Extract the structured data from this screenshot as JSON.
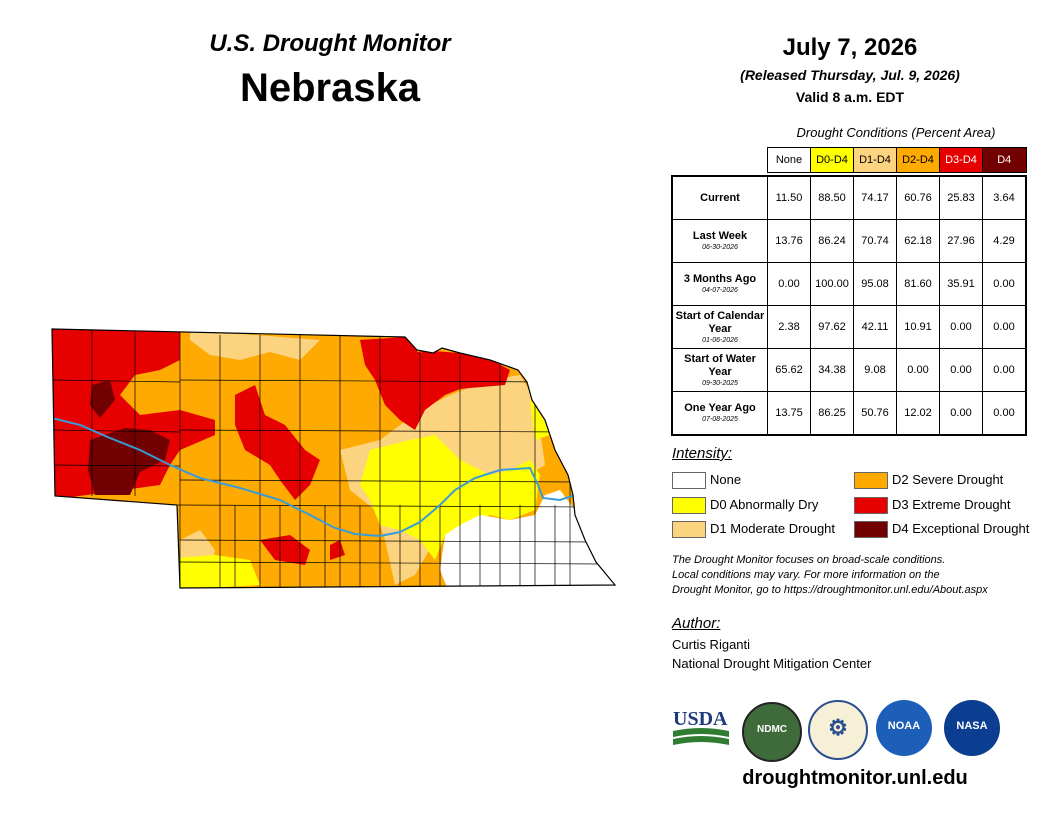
{
  "header": {
    "title": "U.S. Drought Monitor",
    "state": "Nebraska",
    "date": "July 7, 2026",
    "released": "(Released Thursday, Jul. 9, 2026)",
    "valid": "Valid 8 a.m. EDT"
  },
  "table": {
    "title": "Drought Conditions (Percent Area)",
    "columns": [
      "None",
      "D0-D4",
      "D1-D4",
      "D2-D4",
      "D3-D4",
      "D4"
    ],
    "column_colors": [
      "#ffffff",
      "#ffff00",
      "#fcd37f",
      "#ffaa00",
      "#e60000",
      "#730000"
    ],
    "column_text_colors": [
      "#000000",
      "#000000",
      "#000000",
      "#000000",
      "#ffffff",
      "#ffffff"
    ],
    "rows": [
      {
        "label": "Current",
        "sub": "",
        "values": [
          "11.50",
          "88.50",
          "74.17",
          "60.76",
          "25.83",
          "3.64"
        ]
      },
      {
        "label": "Last Week",
        "sub": "06-30-2026",
        "values": [
          "13.76",
          "86.24",
          "70.74",
          "62.18",
          "27.96",
          "4.29"
        ]
      },
      {
        "label": "3 Months Ago",
        "sub": "04-07-2026",
        "values": [
          "0.00",
          "100.00",
          "95.08",
          "81.60",
          "35.91",
          "0.00"
        ]
      },
      {
        "label": "Start of Calendar Year",
        "sub": "01-06-2026",
        "values": [
          "2.38",
          "97.62",
          "42.11",
          "10.91",
          "0.00",
          "0.00"
        ]
      },
      {
        "label": "Start of Water Year",
        "sub": "09-30-2025",
        "values": [
          "65.62",
          "34.38",
          "9.08",
          "0.00",
          "0.00",
          "0.00"
        ]
      },
      {
        "label": "One Year Ago",
        "sub": "07-08-2025",
        "values": [
          "13.75",
          "86.25",
          "50.76",
          "12.02",
          "0.00",
          "0.00"
        ]
      }
    ]
  },
  "legend": {
    "title": "Intensity:",
    "items": [
      {
        "label": "None",
        "color": "#ffffff"
      },
      {
        "label": "D0 Abnormally Dry",
        "color": "#ffff00"
      },
      {
        "label": "D1 Moderate Drought",
        "color": "#fcd37f"
      },
      {
        "label": "D2 Severe Drought",
        "color": "#ffaa00"
      },
      {
        "label": "D3 Extreme Drought",
        "color": "#e60000"
      },
      {
        "label": "D4 Exceptional Drought",
        "color": "#730000"
      }
    ]
  },
  "note": {
    "line1": "The Drought Monitor focuses on broad-scale conditions.",
    "line2": "Local conditions may vary. For more information on the",
    "line3": "Drought Monitor, go to https://droughtmonitor.unl.edu/About.aspx"
  },
  "author": {
    "title": "Author:",
    "name": "Curtis Riganti",
    "org": "National Drought Mitigation Center"
  },
  "logos": {
    "usda": "USDA",
    "ndmc": "NDMC",
    "noaa": "NOAA",
    "nasa": "NASA"
  },
  "website": "droughtmonitor.unl.edu",
  "colors": {
    "river": "#3a9bd9",
    "county_lines": "#000000"
  }
}
